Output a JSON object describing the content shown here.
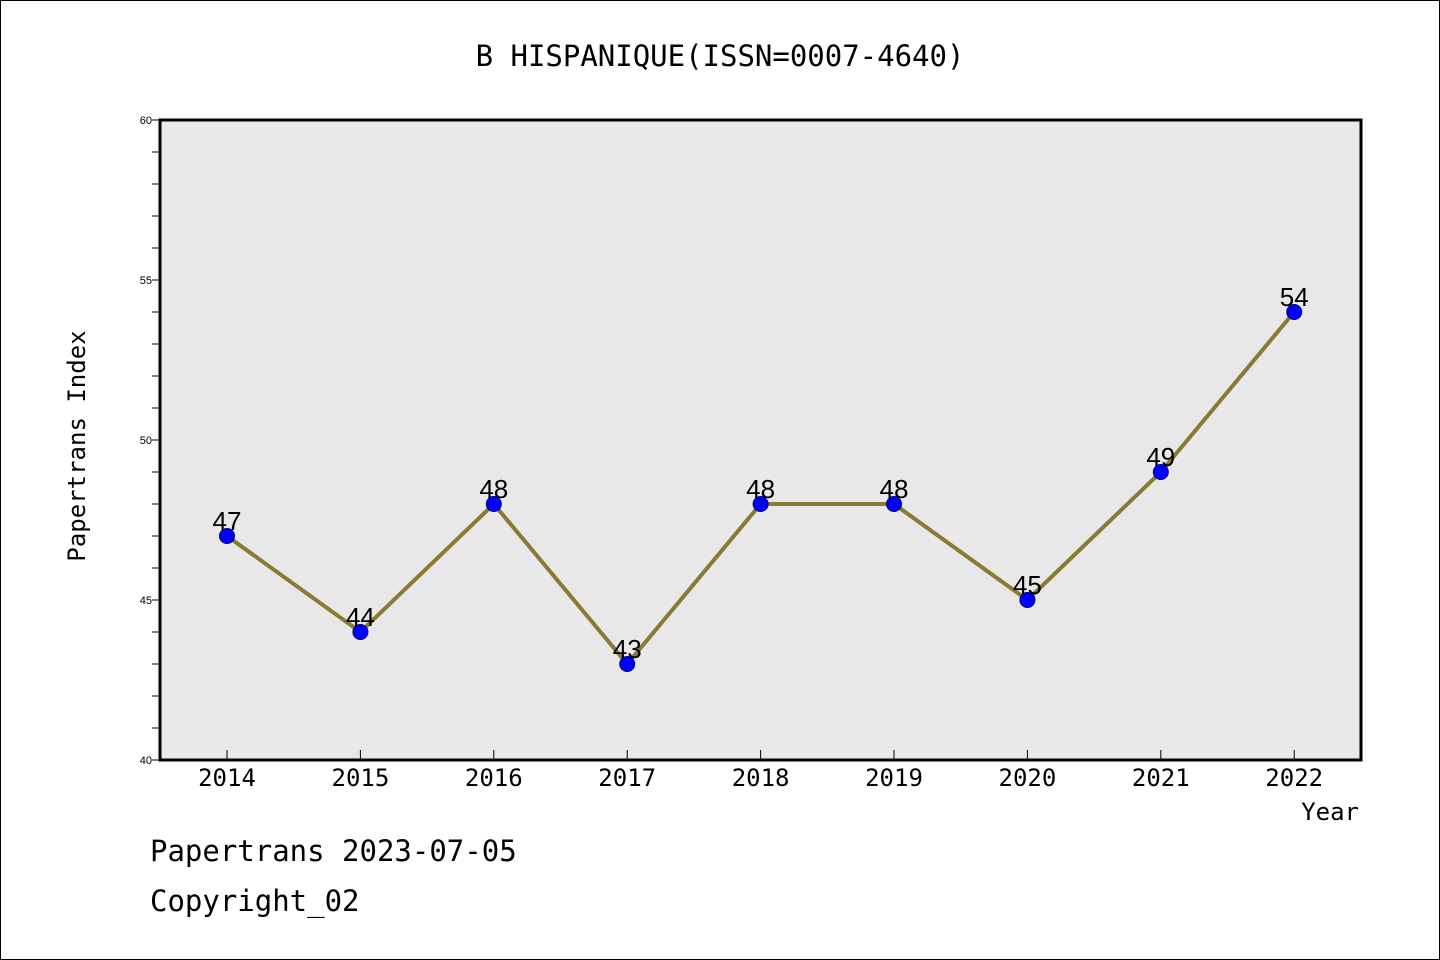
{
  "chart_data": {
    "type": "line",
    "title": "B HISPANIQUE(ISSN=0007-4640)",
    "xlabel": "Year",
    "ylabel": "Papertrans Index",
    "categories": [
      "2014",
      "2015",
      "2016",
      "2017",
      "2018",
      "2019",
      "2020",
      "2021",
      "2022"
    ],
    "values": [
      47,
      44,
      48,
      43,
      48,
      48,
      45,
      49,
      54
    ],
    "data_labels": [
      "47",
      "44",
      "48",
      "43",
      "48",
      "48",
      "45",
      "49",
      "54"
    ],
    "ylim": [
      40,
      60
    ],
    "y_ticks": [
      40,
      45,
      50,
      55,
      60
    ],
    "y_tick_labels": [
      "40",
      "45",
      "50",
      "55",
      "60"
    ],
    "grid": false,
    "line_color": "#8b7a35",
    "marker_color": "#0000ff",
    "plot_background": "#e8e8e8"
  },
  "footer": {
    "line1": "Papertrans 2023-07-05",
    "line2": "Copyright_02"
  }
}
